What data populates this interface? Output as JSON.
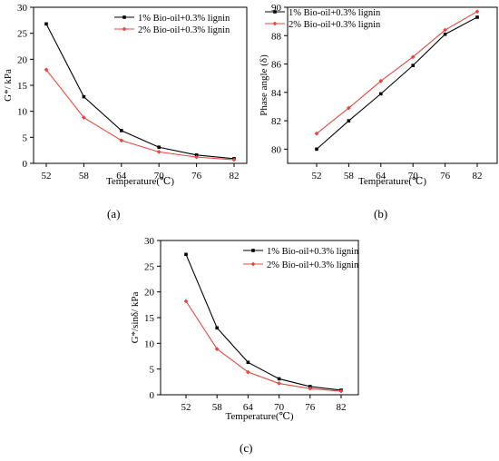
{
  "chart_data": [
    {
      "type": "line",
      "caption": "(a)",
      "xlabel": "Temperature(℃)",
      "ylabel": "G*/ kPa",
      "x": [
        52,
        58,
        64,
        70,
        76,
        82
      ],
      "xticks": [
        "52",
        "58",
        "64",
        "70",
        "76",
        "82"
      ],
      "ylim": [
        0,
        30
      ],
      "yticks": [
        "0",
        "5",
        "10",
        "15",
        "20",
        "25",
        "30"
      ],
      "legend_position": "top-right",
      "series": [
        {
          "name": "1% Bio-oil+0.3% lignin",
          "color": "#000000",
          "marker": "square",
          "values": [
            26.8,
            12.8,
            6.3,
            3.1,
            1.6,
            0.9
          ]
        },
        {
          "name": "2% Bio-oil+0.3% lignin",
          "color": "#e8473f",
          "marker": "diamond",
          "values": [
            18.0,
            8.8,
            4.4,
            2.2,
            1.2,
            0.7
          ]
        }
      ]
    },
    {
      "type": "line",
      "caption": "(b)",
      "xlabel": "Temperature(℃)",
      "ylabel": "Phase angle (δ)",
      "x": [
        52,
        58,
        64,
        70,
        76,
        82
      ],
      "xticks": [
        "52",
        "58",
        "64",
        "70",
        "76",
        "82"
      ],
      "ylim": [
        79,
        90
      ],
      "yticks": [
        "80",
        "82",
        "84",
        "86",
        "88",
        "90"
      ],
      "legend_position": "top-left",
      "series": [
        {
          "name": "1% Bio-oil+0.3% lignin",
          "color": "#000000",
          "marker": "square",
          "values": [
            80.0,
            82.0,
            83.9,
            85.9,
            88.1,
            89.3
          ]
        },
        {
          "name": "2% Bio-oil+0.3% lignin",
          "color": "#e8473f",
          "marker": "diamond",
          "values": [
            81.1,
            82.9,
            84.8,
            86.5,
            88.4,
            89.7
          ]
        }
      ]
    },
    {
      "type": "line",
      "caption": "(c)",
      "xlabel": "Temperature(℃)",
      "ylabel": "G*/sinδ/ kPa",
      "x": [
        52,
        58,
        64,
        70,
        76,
        82
      ],
      "xticks": [
        "52",
        "58",
        "64",
        "70",
        "76",
        "82"
      ],
      "ylim": [
        0,
        30
      ],
      "yticks": [
        "0",
        "5",
        "10",
        "15",
        "20",
        "25",
        "30"
      ],
      "legend_position": "top-right",
      "series": [
        {
          "name": "1% Bio-oil+0.3% lignin",
          "color": "#000000",
          "marker": "square",
          "values": [
            27.3,
            13.0,
            6.3,
            3.1,
            1.6,
            0.9
          ]
        },
        {
          "name": "2% Bio-oil+0.3% lignin",
          "color": "#e8473f",
          "marker": "diamond",
          "values": [
            18.2,
            8.9,
            4.4,
            2.2,
            1.2,
            0.7
          ]
        }
      ]
    }
  ]
}
